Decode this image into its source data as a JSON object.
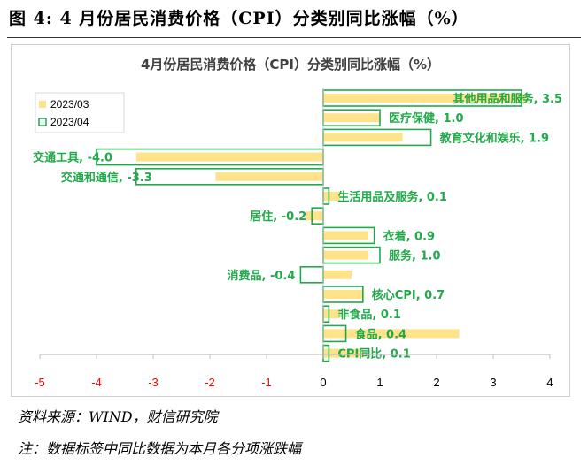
{
  "figure_title": "图 4: 4 月份居民消费价格（CPI）分类别同比涨幅（%）",
  "source": "资料来源：WIND，财信研究院",
  "footnote": "注：数据标签中同比数据为本月各分项涨跌幅",
  "colors": {
    "series_03": "#FFE38A",
    "series_04": "#21A94A",
    "label": "#21A94A",
    "neg_tick": "#FF0000"
  },
  "chart_data": {
    "type": "bar",
    "orientation": "horizontal",
    "title": "4月份居民消费价格（CPI）分类别同比涨幅（%）",
    "categories": [
      "其他用品和服务",
      "医疗保健",
      "教育文化和娱乐",
      "交通工具",
      "交通和通信",
      "生活用品及服务",
      "居住",
      "衣着",
      "服务",
      "消费品",
      "核心CPI",
      "非食品",
      "食品",
      "CPI同比"
    ],
    "series": [
      {
        "name": "2023/03",
        "style": "filled",
        "values": [
          3.6,
          1.0,
          1.4,
          -3.3,
          -1.9,
          0.3,
          -0.3,
          0.8,
          0.8,
          0.5,
          0.7,
          0.3,
          2.4,
          0.7
        ]
      },
      {
        "name": "2023/04",
        "style": "outline",
        "values": [
          3.5,
          1.0,
          1.9,
          -4.0,
          -3.3,
          0.1,
          -0.2,
          0.9,
          1.0,
          -0.4,
          0.7,
          0.1,
          0.4,
          0.1
        ]
      }
    ],
    "data_labels": [
      "其他用品和服务, 3.5",
      "医疗保健, 1.0",
      "教育文化和娱乐, 1.9",
      "交通工具, -4.0",
      "交通和通信, -3.3",
      "生活用品及服务, 0.1",
      "居住, -0.2",
      "衣着, 0.9",
      "服务, 1.0",
      "消费品, -0.4",
      "核心CPI, 0.7",
      "非食品, 0.1",
      "食品, 0.4",
      "CPI同比, 0.1"
    ],
    "xlim": [
      -5,
      4
    ],
    "xticks": [
      "-5",
      "-4",
      "-3",
      "-2",
      "-1",
      "0",
      "1",
      "2",
      "3",
      "4"
    ],
    "legend_placement": "top-left",
    "grid": false
  }
}
